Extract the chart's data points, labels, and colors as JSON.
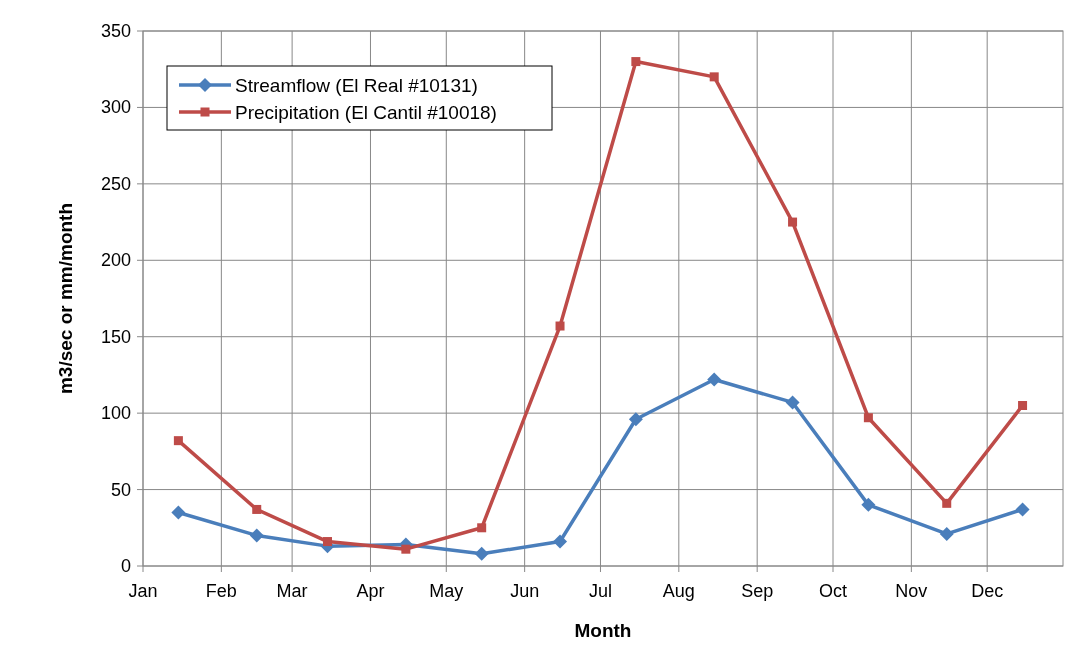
{
  "chart_data": {
    "type": "line",
    "xlabel": "Month",
    "ylabel": "m3/sec or mm/month",
    "x": [
      "--01-15",
      "--02-15",
      "--03-15",
      "--04-15",
      "--05-15",
      "--06-15",
      "--07-15",
      "--08-15",
      "--09-15",
      "--10-15",
      "--11-15",
      "--12-15"
    ],
    "series": [
      {
        "name": "Streamflow (El Real #10131)",
        "color": "#4a7ebb",
        "marker": "diamond",
        "values": [
          35,
          20,
          13,
          14,
          8,
          16,
          96,
          122,
          107,
          40,
          21,
          37
        ]
      },
      {
        "name": "Precipitation (El Cantil #10018)",
        "color": "#be4b48",
        "marker": "square",
        "values": [
          82,
          37,
          16,
          11,
          25,
          157,
          330,
          320,
          225,
          97,
          41,
          105
        ]
      }
    ],
    "xlim": [
      "--01-01",
      "--12-31"
    ],
    "xticks": [
      {
        "value": "--01-01",
        "label": "Jan"
      },
      {
        "value": "--02-01",
        "label": "Feb"
      },
      {
        "value": "--03-01",
        "label": "Mar"
      },
      {
        "value": "--04-01",
        "label": "Apr"
      },
      {
        "value": "--05-01",
        "label": "May"
      },
      {
        "value": "--06-01",
        "label": "Jun"
      },
      {
        "value": "--07-01",
        "label": "Jul"
      },
      {
        "value": "--08-01",
        "label": "Aug"
      },
      {
        "value": "--09-01",
        "label": "Sep"
      },
      {
        "value": "--10-01",
        "label": "Oct"
      },
      {
        "value": "--11-01",
        "label": "Nov"
      },
      {
        "value": "--12-01",
        "label": "Dec"
      }
    ],
    "ylim": [
      0,
      350
    ],
    "yticks": [
      0,
      50,
      100,
      150,
      200,
      250,
      300,
      350
    ],
    "grid": true,
    "legend": "top left",
    "line_style": "solid"
  }
}
